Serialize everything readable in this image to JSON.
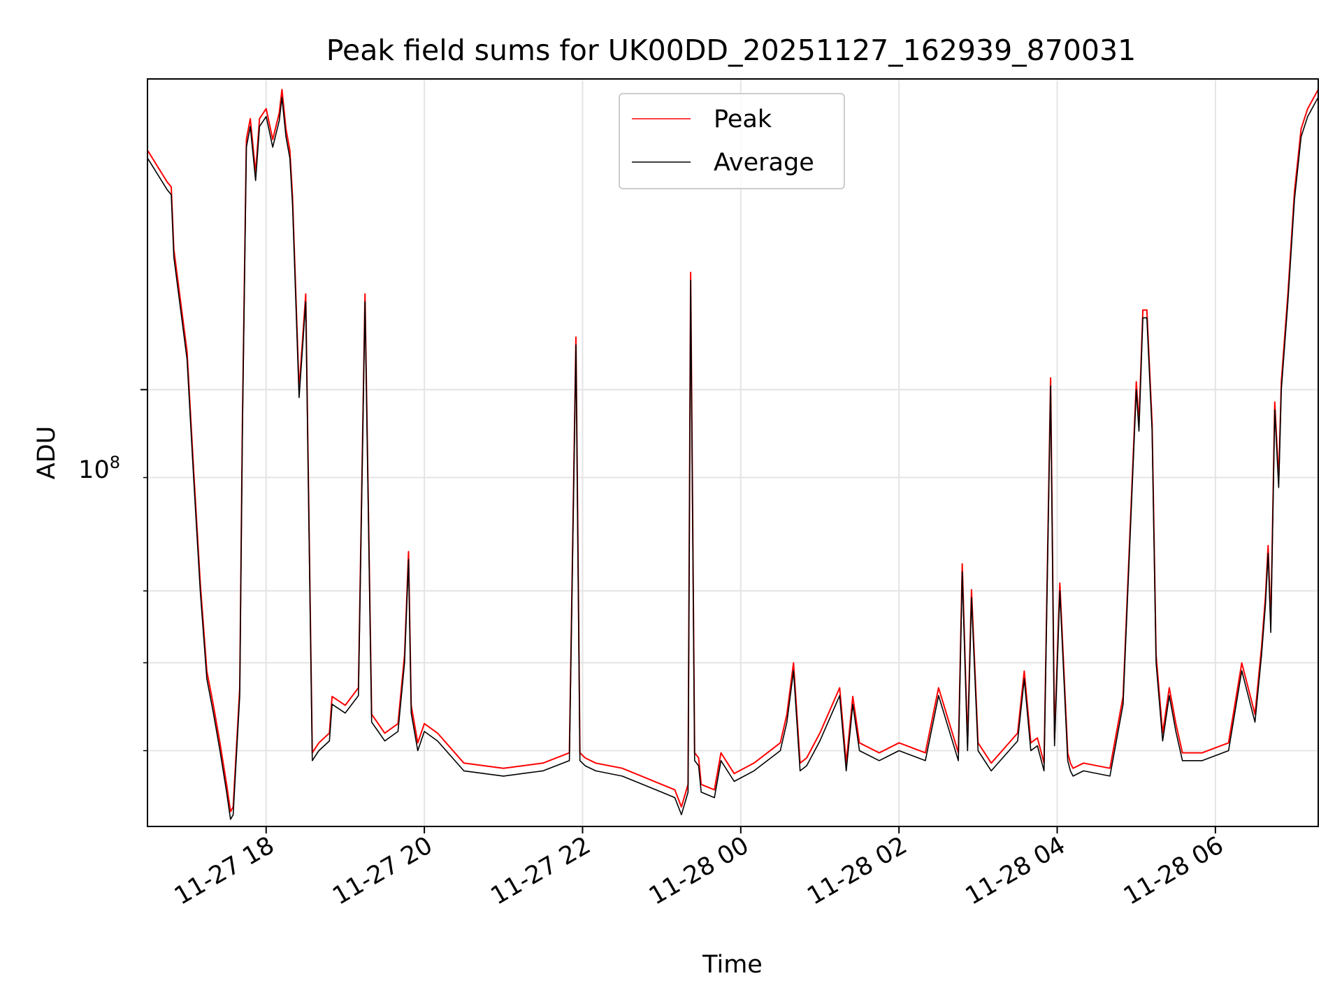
{
  "chart_data": {
    "type": "line",
    "title": "Peak field sums for UK00DD_20251127_162939_870031",
    "xlabel": "Time",
    "ylabel": "ADU",
    "y_scale": "log",
    "y_major_tick": {
      "value": 100000000.0,
      "base": "10",
      "exponent": "8"
    },
    "y_minor_ticks": [
      40000000,
      50000000,
      60000000,
      80000000
    ],
    "ylim": [
      33000000,
      220000000
    ],
    "xlim": [
      "2025-11-27T16:30",
      "2025-11-28T07:18"
    ],
    "x_ticks": [
      {
        "t": "2025-11-27T18:00",
        "label": "11-27 18"
      },
      {
        "t": "2025-11-27T20:00",
        "label": "11-27 20"
      },
      {
        "t": "2025-11-27T22:00",
        "label": "11-27 22"
      },
      {
        "t": "2025-11-28T00:00",
        "label": "11-28 00"
      },
      {
        "t": "2025-11-28T02:00",
        "label": "11-28 02"
      },
      {
        "t": "2025-11-28T04:00",
        "label": "11-28 04"
      },
      {
        "t": "2025-11-28T06:00",
        "label": "11-28 06"
      }
    ],
    "grid": true,
    "legend_position": "top-center",
    "series": [
      {
        "name": "Peak",
        "color": "#ff0000",
        "peak_ratio": 1.02
      },
      {
        "name": "Average",
        "color": "#000000"
      }
    ],
    "x": [
      "2025-11-27T16:30",
      "2025-11-27T16:45",
      "2025-11-27T16:48",
      "2025-11-27T16:50",
      "2025-11-27T17:00",
      "2025-11-27T17:05",
      "2025-11-27T17:10",
      "2025-11-27T17:15",
      "2025-11-27T17:20",
      "2025-11-27T17:25",
      "2025-11-27T17:30",
      "2025-11-27T17:33",
      "2025-11-27T17:35",
      "2025-11-27T17:40",
      "2025-11-27T17:42",
      "2025-11-27T17:45",
      "2025-11-27T17:48",
      "2025-11-27T17:52",
      "2025-11-27T17:55",
      "2025-11-27T18:00",
      "2025-11-27T18:05",
      "2025-11-27T18:10",
      "2025-11-27T18:12",
      "2025-11-27T18:15",
      "2025-11-27T18:18",
      "2025-11-27T18:20",
      "2025-11-27T18:25",
      "2025-11-27T18:30",
      "2025-11-27T18:35",
      "2025-11-27T18:40",
      "2025-11-27T18:48",
      "2025-11-27T18:50",
      "2025-11-27T19:00",
      "2025-11-27T19:10",
      "2025-11-27T19:15",
      "2025-11-27T19:20",
      "2025-11-27T19:25",
      "2025-11-27T19:30",
      "2025-11-27T19:40",
      "2025-11-27T19:45",
      "2025-11-27T19:48",
      "2025-11-27T19:50",
      "2025-11-27T19:55",
      "2025-11-27T20:00",
      "2025-11-27T20:10",
      "2025-11-27T20:30",
      "2025-11-27T21:00",
      "2025-11-27T21:30",
      "2025-11-27T21:50",
      "2025-11-27T21:55",
      "2025-11-27T21:58",
      "2025-11-27T22:02",
      "2025-11-27T22:10",
      "2025-11-27T22:30",
      "2025-11-27T22:40",
      "2025-11-27T23:00",
      "2025-11-27T23:10",
      "2025-11-27T23:15",
      "2025-11-27T23:20",
      "2025-11-27T23:22",
      "2025-11-27T23:25",
      "2025-11-27T23:28",
      "2025-11-27T23:30",
      "2025-11-27T23:40",
      "2025-11-27T23:45",
      "2025-11-27T23:55",
      "2025-11-28T00:10",
      "2025-11-28T00:30",
      "2025-11-28T00:35",
      "2025-11-28T00:40",
      "2025-11-28T00:45",
      "2025-11-28T00:50",
      "2025-11-28T01:00",
      "2025-11-28T01:15",
      "2025-11-28T01:20",
      "2025-11-28T01:25",
      "2025-11-28T01:30",
      "2025-11-28T01:45",
      "2025-11-28T02:00",
      "2025-11-28T02:20",
      "2025-11-28T02:30",
      "2025-11-28T02:45",
      "2025-11-28T02:48",
      "2025-11-28T02:52",
      "2025-11-28T02:55",
      "2025-11-28T03:00",
      "2025-11-28T03:10",
      "2025-11-28T03:30",
      "2025-11-28T03:35",
      "2025-11-28T03:40",
      "2025-11-28T03:45",
      "2025-11-28T03:50",
      "2025-11-28T03:55",
      "2025-11-28T03:58",
      "2025-11-28T04:02",
      "2025-11-28T04:08",
      "2025-11-28T04:10",
      "2025-11-28T04:12",
      "2025-11-28T04:20",
      "2025-11-28T04:40",
      "2025-11-28T04:50",
      "2025-11-28T05:00",
      "2025-11-28T05:02",
      "2025-11-28T05:05",
      "2025-11-28T05:08",
      "2025-11-28T05:12",
      "2025-11-28T05:15",
      "2025-11-28T05:20",
      "2025-11-28T05:25",
      "2025-11-28T05:30",
      "2025-11-28T05:35",
      "2025-11-28T05:40",
      "2025-11-28T05:50",
      "2025-11-28T06:10",
      "2025-11-28T06:20",
      "2025-11-28T06:30",
      "2025-11-28T06:35",
      "2025-11-28T06:38",
      "2025-11-28T06:40",
      "2025-11-28T06:42",
      "2025-11-28T06:45",
      "2025-11-28T06:48",
      "2025-11-28T06:50",
      "2025-11-28T06:55",
      "2025-11-28T07:00",
      "2025-11-28T07:05",
      "2025-11-28T07:10",
      "2025-11-28T07:18"
    ],
    "average_adu": [
      180000000,
      166000000,
      164000000,
      140000000,
      108000000,
      80000000,
      60000000,
      48000000,
      44000000,
      40000000,
      36000000,
      33600000,
      34000000,
      46000000,
      90000000,
      185000000,
      195000000,
      170000000,
      195000000,
      200000000,
      185000000,
      198000000,
      210000000,
      190000000,
      180000000,
      160000000,
      98000000,
      125000000,
      39000000,
      40000000,
      41000000,
      45000000,
      44000000,
      46000000,
      125000000,
      43000000,
      42000000,
      41000000,
      42000000,
      50000000,
      65000000,
      44000000,
      40000000,
      42000000,
      41000000,
      38000000,
      37500000,
      38000000,
      39000000,
      112000000,
      39000000,
      38500000,
      38000000,
      37500000,
      37000000,
      36000000,
      35500000,
      34000000,
      36000000,
      132000000,
      39000000,
      38500000,
      36000000,
      35500000,
      39000000,
      37000000,
      38000000,
      40000000,
      43000000,
      49000000,
      38000000,
      38500000,
      41000000,
      46000000,
      38000000,
      45000000,
      40000000,
      39000000,
      40000000,
      39000000,
      46000000,
      39000000,
      63000000,
      40000000,
      59000000,
      40000000,
      38000000,
      41000000,
      48000000,
      40000000,
      40500000,
      38000000,
      101000000,
      40500000,
      60000000,
      39000000,
      38000000,
      37500000,
      38000000,
      37500000,
      45000000,
      100000000,
      90000000,
      120000000,
      120000000,
      90000000,
      50000000,
      41000000,
      46000000,
      42000000,
      39000000,
      39000000,
      39000000,
      40000000,
      49000000,
      43000000,
      51000000,
      58000000,
      66000000,
      54000000,
      95000000,
      78000000,
      100000000,
      125000000,
      162000000,
      190000000,
      200000000,
      210000000
    ]
  }
}
